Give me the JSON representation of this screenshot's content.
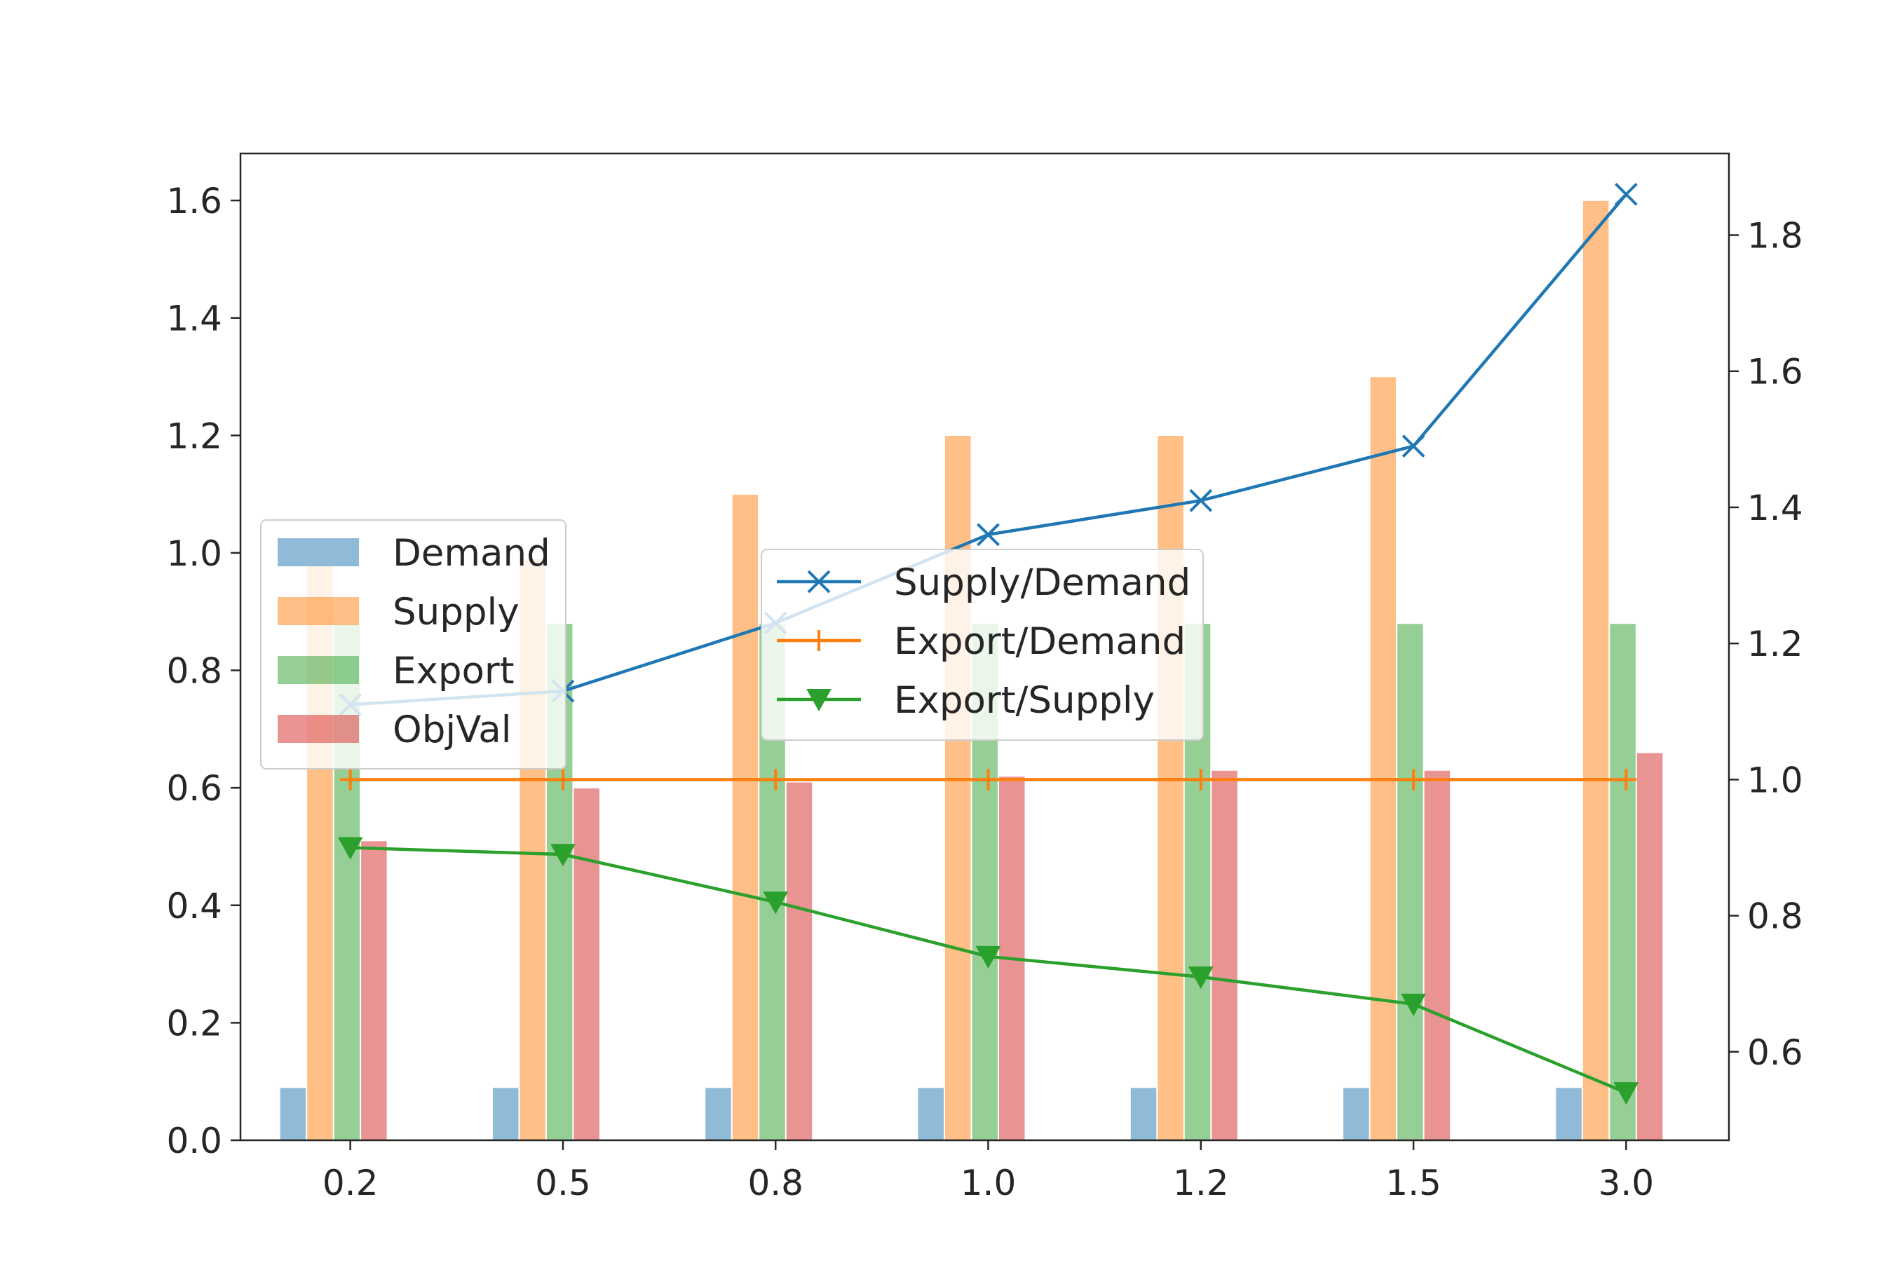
{
  "chart_data": {
    "type": "bar+line",
    "categories": [
      "0.2",
      "0.5",
      "0.8",
      "1.0",
      "1.2",
      "1.5",
      "3.0"
    ],
    "bar_series": [
      {
        "name": "Demand",
        "color": "#1f77b4",
        "values": [
          0.09,
          0.09,
          0.09,
          0.09,
          0.09,
          0.09,
          0.09
        ]
      },
      {
        "name": "Supply",
        "color": "#ff7f0e",
        "values": [
          0.98,
          0.99,
          1.1,
          1.2,
          1.2,
          1.3,
          1.6
        ]
      },
      {
        "name": "Export",
        "color": "#2ca02c",
        "values": [
          0.88,
          0.88,
          0.88,
          0.88,
          0.88,
          0.88,
          0.88
        ]
      },
      {
        "name": "ObjVal",
        "color": "#d62728",
        "values": [
          0.51,
          0.6,
          0.61,
          0.62,
          0.63,
          0.63,
          0.66
        ]
      }
    ],
    "line_series": [
      {
        "name": "Supply/Demand",
        "color": "#1f77b4",
        "marker": "x",
        "values": [
          1.11,
          1.13,
          1.23,
          1.36,
          1.41,
          1.49,
          1.86
        ]
      },
      {
        "name": "Export/Demand",
        "color": "#ff7f0e",
        "marker": "+",
        "values": [
          1.0,
          1.0,
          1.0,
          1.0,
          1.0,
          1.0,
          1.0
        ]
      },
      {
        "name": "Export/Supply",
        "color": "#2ca02c",
        "marker": "triangle-down",
        "values": [
          0.9,
          0.89,
          0.82,
          0.74,
          0.71,
          0.67,
          0.54
        ]
      }
    ],
    "y_left": {
      "lim": [
        0.0,
        1.68
      ],
      "ticks": [
        "0.0",
        "0.2",
        "0.4",
        "0.6",
        "0.8",
        "1.0",
        "1.2",
        "1.4",
        "1.6"
      ]
    },
    "y_right": {
      "lim": [
        0.47,
        1.92
      ],
      "ticks": [
        "0.6",
        "0.8",
        "1.0",
        "1.2",
        "1.4",
        "1.6",
        "1.8"
      ]
    },
    "legend_bars_position": "center-left",
    "legend_lines_position": "center",
    "grid": false,
    "title": "",
    "xlabel": "",
    "ylabel": ""
  }
}
